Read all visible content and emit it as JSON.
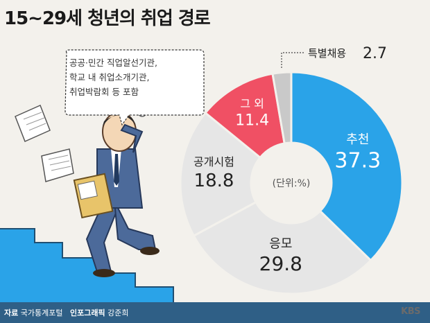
{
  "title": "15~29세 청년의 취업 경로",
  "unit_label": "(단위:%)",
  "callout_lines": [
    "공공·민간 직업알선기관,",
    "학교 내 취업소개기관,",
    "취업박람회 등 포함"
  ],
  "footer": {
    "source_label": "자료",
    "source": "국가통계포털",
    "graphic_label": "인포그래픽",
    "graphic": "강준희"
  },
  "logo": "KBS",
  "colors": {
    "primary": "#2aa3e8",
    "secondary": "#e6e6e6",
    "highlight": "#f05064",
    "minor": "#c9c9c9"
  },
  "chart_data": {
    "type": "pie",
    "donut": true,
    "unit": "%",
    "slices": [
      {
        "label": "추천",
        "value": 37.3,
        "color": "#2aa3e8"
      },
      {
        "label": "응모",
        "value": 29.8,
        "color": "#e6e6e6"
      },
      {
        "label": "공개시험",
        "value": 18.8,
        "color": "#e6e6e6"
      },
      {
        "label": "그 외",
        "value": 11.4,
        "color": "#f05064"
      },
      {
        "label": "특별채용",
        "value": 2.7,
        "color": "#c9c9c9"
      }
    ]
  }
}
